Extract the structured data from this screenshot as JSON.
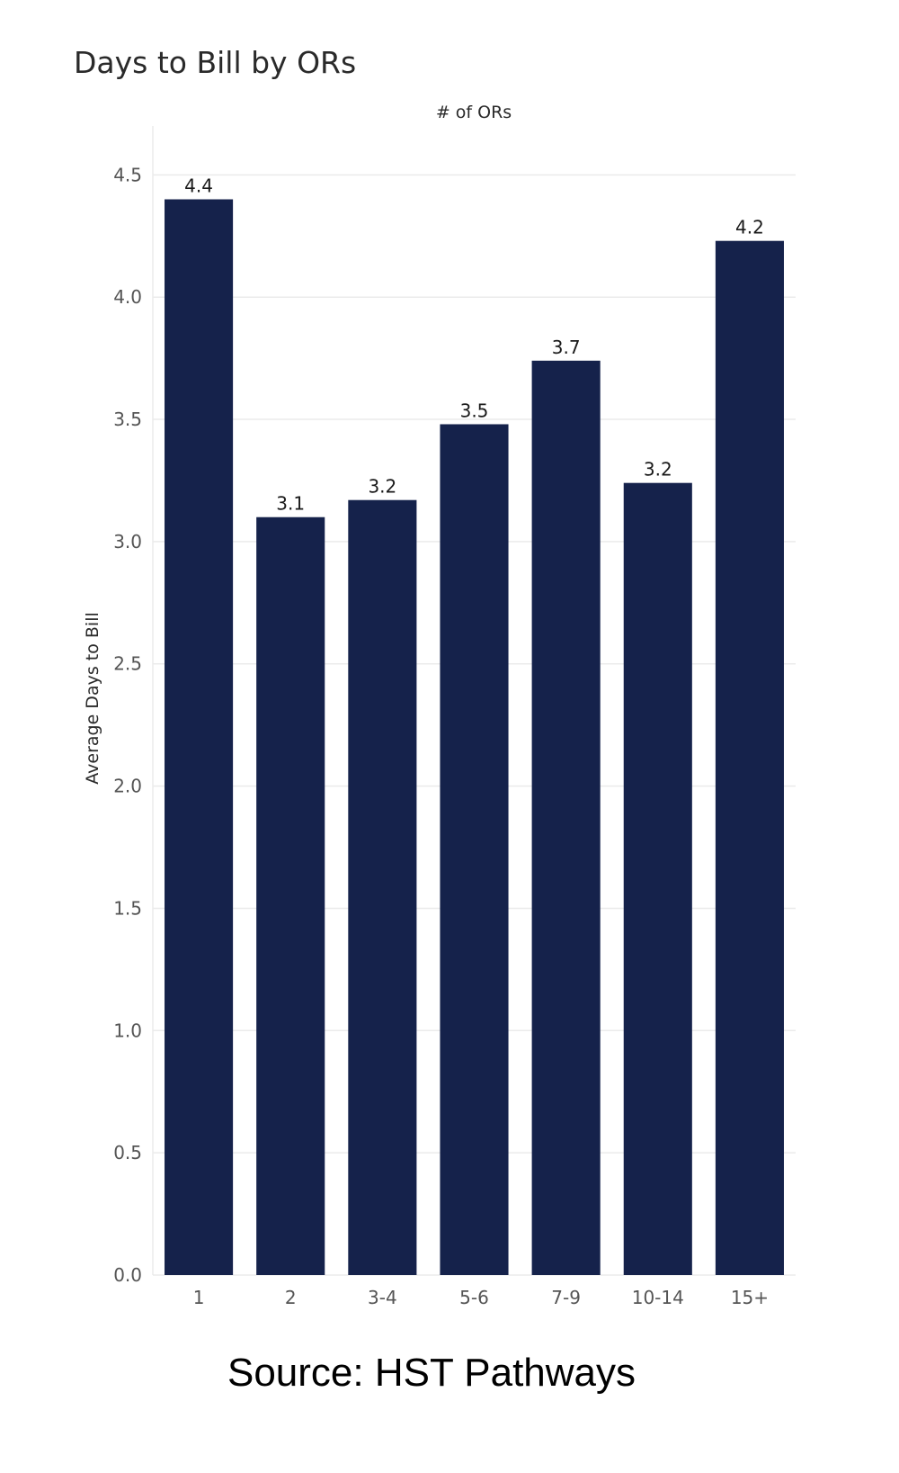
{
  "chart_data": {
    "type": "bar",
    "title": "Days to Bill by ORs",
    "xlabel": "# of ORs",
    "xlabel_position": "top",
    "ylabel": "Average Days to Bill",
    "categories": [
      "1",
      "2",
      "3-4",
      "5-6",
      "7-9",
      "10-14",
      "15+"
    ],
    "values": [
      4.4,
      3.1,
      3.17,
      3.48,
      3.74,
      3.24,
      4.23
    ],
    "data_labels": [
      "4.4",
      "3.1",
      "3.2",
      "3.5",
      "3.7",
      "3.2",
      "4.2"
    ],
    "ylim": [
      0,
      4.7
    ],
    "yticks": [
      0.0,
      0.5,
      1.0,
      1.5,
      2.0,
      2.5,
      3.0,
      3.5,
      4.0,
      4.5
    ],
    "ytick_labels": [
      "0.0",
      "0.5",
      "1.0",
      "1.5",
      "2.0",
      "2.5",
      "3.0",
      "3.5",
      "4.0",
      "4.5"
    ],
    "grid": true,
    "legend": "none",
    "bar_color": "#15224b"
  },
  "source": "Source: HST Pathways"
}
